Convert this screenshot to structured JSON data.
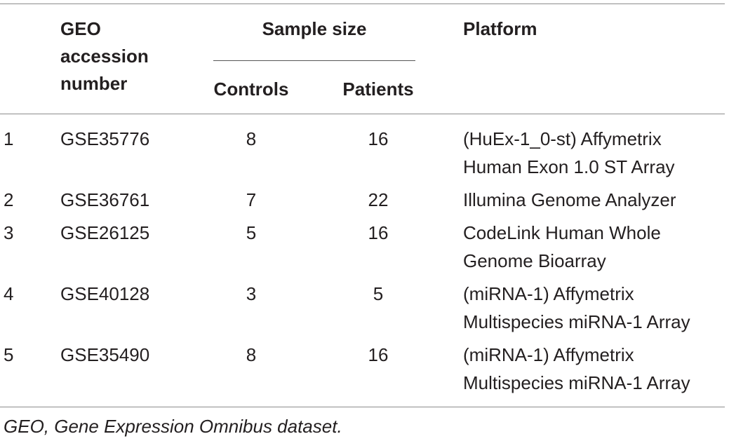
{
  "headers": {
    "geo": [
      "GEO",
      "accession",
      "number"
    ],
    "sample_size": "Sample size",
    "controls": "Controls",
    "patients": "Patients",
    "platform": "Platform"
  },
  "rows": [
    {
      "index": "1",
      "accession": "GSE35776",
      "controls": "8",
      "patients": "16",
      "platform": [
        "(HuEx-1_0-st) Affymetrix",
        "Human Exon 1.0 ST Array"
      ]
    },
    {
      "index": "2",
      "accession": "GSE36761",
      "controls": "7",
      "patients": "22",
      "platform": [
        "Illumina Genome Analyzer"
      ]
    },
    {
      "index": "3",
      "accession": "GSE26125",
      "controls": "5",
      "patients": "16",
      "platform": [
        "CodeLink Human Whole",
        "Genome Bioarray"
      ]
    },
    {
      "index": "4",
      "accession": "GSE40128",
      "controls": "3",
      "patients": "5",
      "platform": [
        "(miRNA-1) Affymetrix",
        "Multispecies miRNA-1 Array"
      ]
    },
    {
      "index": "5",
      "accession": "GSE35490",
      "controls": "8",
      "patients": "16",
      "platform": [
        "(miRNA-1) Affymetrix",
        "Multispecies miRNA-1 Array"
      ]
    }
  ],
  "footnote": "GEO, Gene Expression Omnibus dataset."
}
